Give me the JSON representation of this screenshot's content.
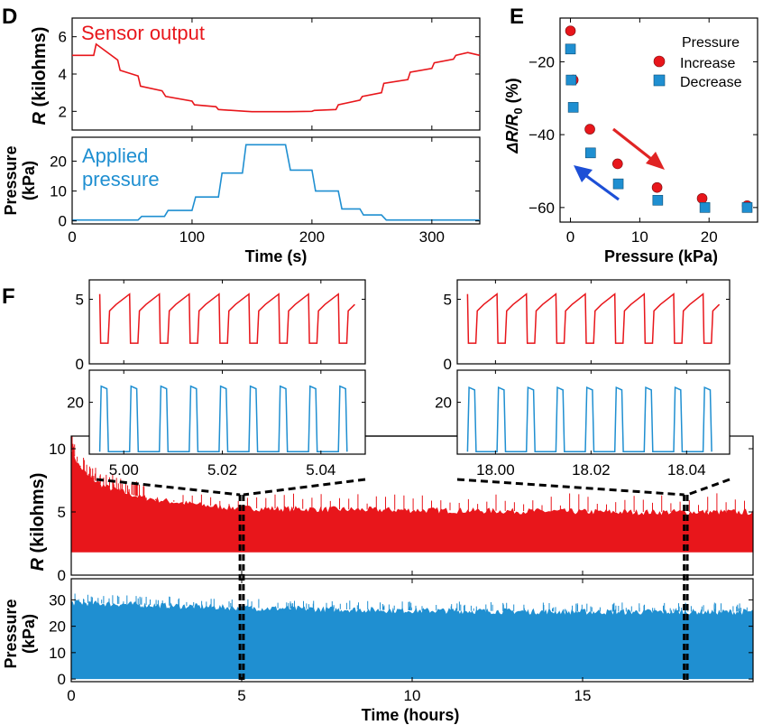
{
  "colors": {
    "red": "#e8161b",
    "blue": "#1f8fd1",
    "arrow_red": "#e02424",
    "arrow_blue": "#1d4fd6",
    "black": "#000000"
  },
  "panels": {
    "D": "D",
    "E": "E",
    "F": "F"
  },
  "chart_data": [
    {
      "id": "D",
      "type": "line",
      "annotations": {
        "resistance": "Sensor output",
        "pressure": "Applied pressure"
      },
      "xlabel": "Time (s)",
      "xlim": [
        0,
        340
      ],
      "xticks": [
        "0",
        "100",
        "200",
        "300"
      ],
      "top": {
        "ylabel_italic": "R",
        "ylabel_rest": " (kilohms)",
        "ylim": [
          1,
          7
        ],
        "yticks": [
          "2",
          "4",
          "6"
        ],
        "x": [
          0,
          18,
          20,
          38,
          40,
          55,
          57,
          75,
          78,
          100,
          102,
          120,
          122,
          145,
          150,
          175,
          180,
          200,
          202,
          220,
          222,
          240,
          242,
          258,
          260,
          280,
          282,
          300,
          302,
          318,
          320,
          330,
          340
        ],
        "y": [
          5.0,
          5.0,
          5.6,
          4.75,
          4.2,
          3.9,
          3.35,
          3.1,
          2.8,
          2.55,
          2.35,
          2.25,
          2.1,
          2.0,
          1.98,
          1.98,
          1.98,
          2.0,
          2.05,
          2.1,
          2.35,
          2.6,
          2.8,
          3.0,
          3.5,
          3.7,
          4.1,
          4.3,
          4.6,
          4.8,
          5.0,
          5.15,
          5.0
        ]
      },
      "bottom": {
        "ylabel": "Pressure (kPa)",
        "ylim": [
          -1,
          28
        ],
        "yticks": [
          "0",
          "10",
          "20"
        ],
        "x": [
          0,
          55,
          58,
          77,
          80,
          100,
          103,
          122,
          125,
          142,
          145,
          178,
          182,
          200,
          203,
          222,
          225,
          240,
          243,
          258,
          262,
          340
        ],
        "y": [
          0.3,
          0.3,
          1.5,
          1.5,
          3.5,
          3.5,
          8,
          8,
          16,
          16,
          25.5,
          25.5,
          17,
          17,
          10,
          10,
          4,
          4,
          2,
          2,
          0.3,
          0.3
        ]
      }
    },
    {
      "id": "E",
      "type": "scatter",
      "xlabel": "Pressure (kPa)",
      "ylabel_delta": "ΔR/R",
      "ylabel_sub": "0",
      "ylabel_rest": " (%)",
      "xlim": [
        -1.5,
        27
      ],
      "ylim": [
        -64,
        -8
      ],
      "xticks": [
        "0",
        "10",
        "20"
      ],
      "yticks": [
        "−20",
        "−40",
        "−60"
      ],
      "legend": {
        "title": "Pressure",
        "increase": "Increase",
        "decrease": "Decrease",
        "position": "top-right"
      },
      "series": [
        {
          "name": "Increase",
          "marker": "circle",
          "x": [
            0.0,
            0.4,
            2.8,
            6.8,
            12.5,
            19.0,
            25.5
          ],
          "y": [
            -11.5,
            -25.0,
            -38.5,
            -48.0,
            -54.5,
            -57.5,
            -59.5
          ]
        },
        {
          "name": "Decrease",
          "marker": "square",
          "x": [
            0.0,
            0.1,
            0.4,
            2.9,
            6.9,
            12.6,
            19.4,
            25.5
          ],
          "y": [
            -16.5,
            -25.0,
            -32.5,
            -45.0,
            -53.5,
            -58.0,
            -60.0,
            -60.0
          ]
        }
      ]
    },
    {
      "id": "F",
      "type": "area",
      "xlabel": "Time (hours)",
      "xlim": [
        0,
        20
      ],
      "xticks": [
        "0",
        "5",
        "10",
        "15"
      ],
      "top": {
        "ylabel_italic": "R",
        "ylabel_rest": " (kilohms)",
        "ylim": [
          0,
          11
        ],
        "yticks": [
          "0",
          "5",
          "10"
        ],
        "upper_envelope": {
          "x": [
            0,
            0.2,
            0.5,
            1,
            2,
            3,
            4,
            5,
            8,
            12,
            16,
            18,
            20
          ],
          "y": [
            10.0,
            8.8,
            7.8,
            7.0,
            6.2,
            5.8,
            5.5,
            5.3,
            5.2,
            5.1,
            5.0,
            5.0,
            5.0
          ]
        },
        "lower_envelope": {
          "x": [
            0,
            20
          ],
          "y": [
            1.8,
            1.8
          ]
        },
        "spike_peak": 6.5
      },
      "bottom": {
        "ylabel": "Pressure (kPa)",
        "ylim": [
          -1,
          38
        ],
        "yticks": [
          "0",
          "10",
          "20",
          "30"
        ],
        "upper_envelope": {
          "x": [
            0,
            5,
            10,
            15,
            20
          ],
          "y": [
            29.0,
            27.0,
            26.0,
            25.5,
            25.5
          ]
        }
      },
      "zoom_windows_hours": [
        4.95,
        5.05,
        17.98,
        18.07
      ],
      "insets": [
        {
          "xticks": [
            "5.00",
            "5.02",
            "5.04"
          ],
          "xlim": [
            4.993,
            5.049
          ],
          "tick_values": [
            5.0,
            5.02,
            5.04
          ],
          "top": {
            "ylim": [
              0,
              6.5
            ],
            "yticks": [
              "0",
              "5"
            ],
            "low": 1.6,
            "high": 5.0
          },
          "bottom": {
            "ylim": [
              -1,
              33
            ],
            "yticks": [
              "20"
            ],
            "peak": 26.5
          },
          "cycles": 9
        },
        {
          "xticks": [
            "18.00",
            "18.02",
            "18.04"
          ],
          "xlim": [
            17.992,
            18.049
          ],
          "tick_values": [
            18.0,
            18.02,
            18.04
          ],
          "top": {
            "ylim": [
              0,
              6.5
            ],
            "yticks": [
              "0",
              "5"
            ],
            "low": 1.6,
            "high": 5.0
          },
          "bottom": {
            "ylim": [
              -1,
              33
            ],
            "yticks": [
              "20"
            ],
            "peak": 26.0
          },
          "cycles": 9
        }
      ]
    }
  ]
}
